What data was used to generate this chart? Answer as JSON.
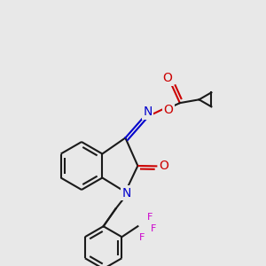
{
  "background_color": "#e8e8e8",
  "bond_color": "#1a1a1a",
  "N_color": "#0000cc",
  "O_color": "#cc0000",
  "F_color": "#cc00cc",
  "linewidth": 1.5,
  "font_size": 9
}
